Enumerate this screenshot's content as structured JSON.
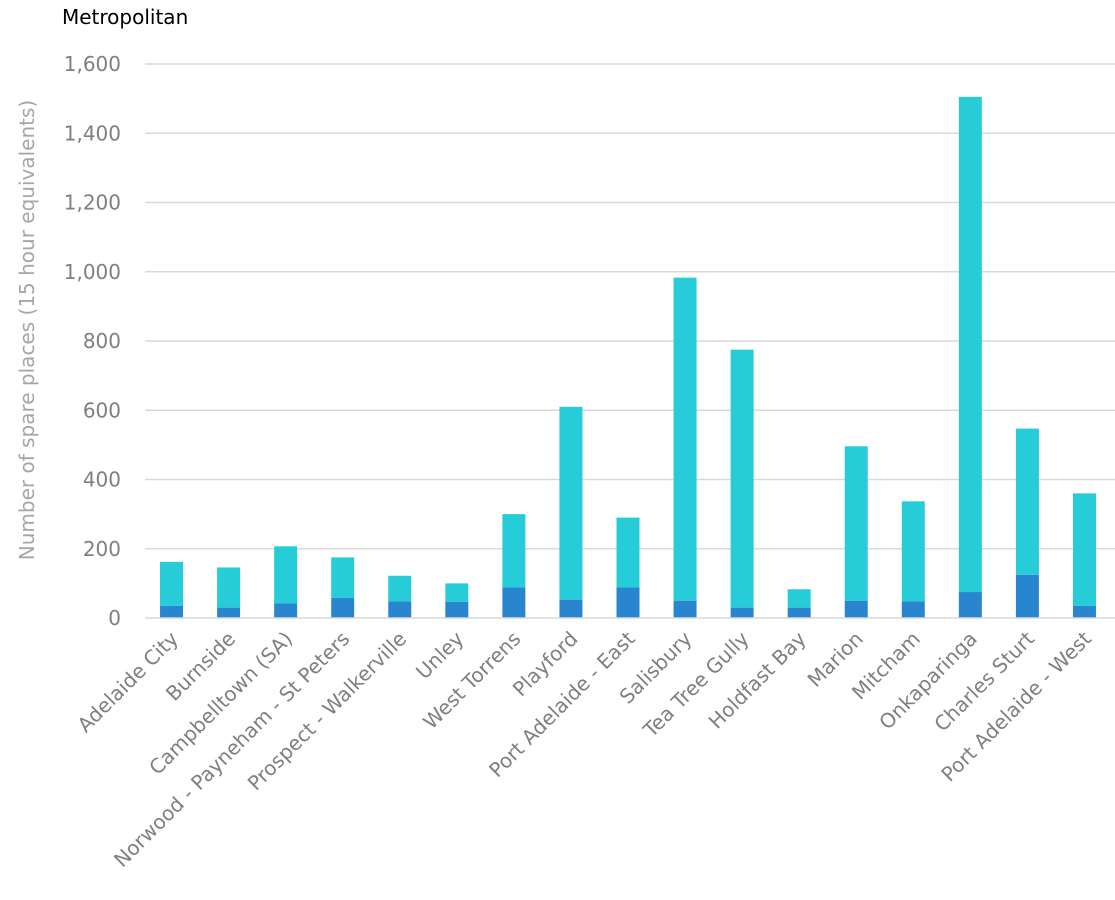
{
  "chart_data": {
    "type": "bar",
    "stacked": true,
    "title": "Metropolitan",
    "ylabel": "Number of spare places (15 hour equivalents)",
    "xlabel": "",
    "ylim": [
      0,
      1600
    ],
    "yticks": [
      0,
      200,
      400,
      600,
      800,
      1000,
      1200,
      1400,
      1600
    ],
    "ytick_labels": [
      "0",
      "200",
      "400",
      "600",
      "800",
      "1,000",
      "1,200",
      "1,400",
      "1,600"
    ],
    "grid": true,
    "legend": "none",
    "categories": [
      "Adelaide City",
      "Burnside",
      "Campbelltown (SA)",
      "Norwood - Payneham - St Peters",
      "Prospect - Walkerville",
      "Unley",
      "West Torrens",
      "Playford",
      "Port Adelaide - East",
      "Salisbury",
      "Tea Tree Gully",
      "Holdfast Bay",
      "Marion",
      "Mitcham",
      "Onkaparinga",
      "Charles Sturt",
      "Port Adelaide - West"
    ],
    "series": [
      {
        "color": "#2a85cf",
        "values": [
          35,
          30,
          42,
          58,
          48,
          47,
          88,
          53,
          88,
          50,
          30,
          30,
          50,
          48,
          75,
          125,
          35
        ]
      },
      {
        "color": "#27ccd9",
        "values": [
          127,
          116,
          165,
          117,
          74,
          53,
          212,
          557,
          202,
          933,
          745,
          53,
          446,
          289,
          1430,
          422,
          325
        ]
      }
    ]
  }
}
